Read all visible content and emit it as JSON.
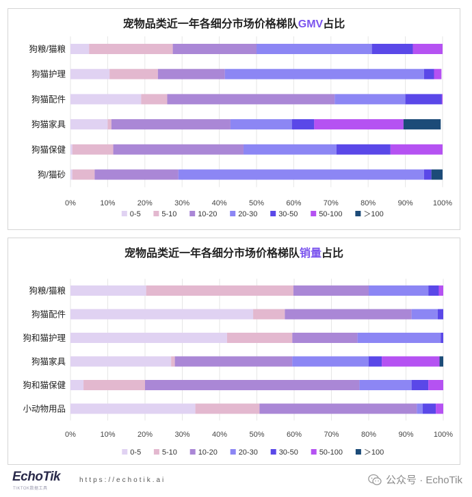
{
  "chart_data": [
    {
      "type": "bar",
      "orientation": "horizontal",
      "stacked": "percent",
      "title_prefix": "宠物品类近一年各细分市场价格梯队",
      "title_highlight": "GMV",
      "title_suffix": "占比",
      "categories": [
        "狗粮/猫粮",
        "狗猫护理",
        "狗猫配件",
        "狗猫家具",
        "狗猫保健",
        "狗/猫砂"
      ],
      "series": [
        {
          "name": "0-5",
          "values": [
            5,
            10.5,
            19,
            10,
            0.5,
            0.5
          ]
        },
        {
          "name": "5-10",
          "values": [
            22.5,
            13,
            7,
            1,
            11,
            6
          ]
        },
        {
          "name": "10-20",
          "values": [
            22.5,
            18,
            45,
            32,
            35,
            22.5
          ]
        },
        {
          "name": "20-30",
          "values": [
            31,
            53.5,
            19,
            16.5,
            25,
            66
          ]
        },
        {
          "name": "30-50",
          "values": [
            11,
            2.7,
            9.8,
            6,
            14.5,
            2
          ]
        },
        {
          "name": "50-100",
          "values": [
            8,
            2,
            0.2,
            24,
            14,
            0
          ]
        },
        {
          "name": "＞100",
          "values": [
            0,
            0,
            0,
            10,
            0,
            3
          ]
        }
      ],
      "xlim": [
        0,
        100
      ],
      "x_ticks": [
        "0%",
        "10%",
        "20%",
        "30%",
        "40%",
        "50%",
        "60%",
        "70%",
        "80%",
        "90%",
        "100%"
      ],
      "legend_position": "bottom",
      "grid": true
    },
    {
      "type": "bar",
      "orientation": "horizontal",
      "stacked": "percent",
      "title_prefix": "宠物品类近一年各细分市场价格梯队",
      "title_highlight": "销量",
      "title_suffix": "占比",
      "categories": [
        "狗粮/猫粮",
        "狗猫配件",
        "狗和猫护理",
        "狗猫家具",
        "狗和猫保健",
        "小动物用品"
      ],
      "series": [
        {
          "name": "0-5",
          "values": [
            20.3,
            49,
            42,
            27,
            3.5,
            33.5
          ]
        },
        {
          "name": "5-10",
          "values": [
            39.5,
            8.5,
            17.5,
            1,
            16.5,
            17.2
          ]
        },
        {
          "name": "10-20",
          "values": [
            20.2,
            34,
            17.5,
            31.5,
            57.5,
            42.2
          ]
        },
        {
          "name": "20-30",
          "values": [
            16,
            7,
            22.3,
            20.5,
            14,
            1.6
          ]
        },
        {
          "name": "30-50",
          "values": [
            2.8,
            1.5,
            0.7,
            3.5,
            4.5,
            3.5
          ]
        },
        {
          "name": "50-100",
          "values": [
            1.2,
            0,
            0,
            15.5,
            4,
            2
          ]
        },
        {
          "name": "＞100",
          "values": [
            0,
            0,
            0,
            1,
            0,
            0
          ]
        }
      ],
      "xlim": [
        0,
        100
      ],
      "x_ticks": [
        "0%",
        "10%",
        "20%",
        "30%",
        "40%",
        "50%",
        "60%",
        "70%",
        "80%",
        "90%",
        "100%"
      ],
      "legend_position": "bottom",
      "grid": true
    }
  ],
  "colors": {
    "0-5": "#e0d2f2",
    "5-10": "#e3b8cf",
    "10-20": "#aa87d6",
    "20-30": "#8c86f4",
    "30-50": "#5a48e8",
    "50-100": "#b552f2",
    "＞100": "#1c4b78"
  },
  "footer": {
    "brand": "EchoTik",
    "brand_sub": "TIKTOK数据工具",
    "url": "https://echotik.ai",
    "wechat": "公众号 · EchoTik"
  }
}
